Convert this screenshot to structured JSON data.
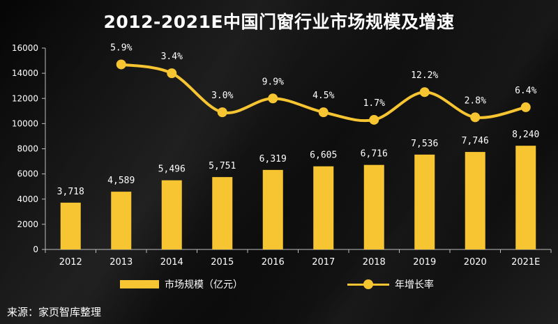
{
  "title": "2012-2021E中国门窗行业市场规模及增速",
  "source": "来源：家页智库整理",
  "colors": {
    "accent": "#F7C531",
    "background": "#000000",
    "text": "#FFFFFF"
  },
  "chart_data": {
    "type": "bar",
    "categories": [
      "2012",
      "2013",
      "2014",
      "2015",
      "2016",
      "2017",
      "2018",
      "2019",
      "2020",
      "2021E"
    ],
    "series": [
      {
        "name": "市场规模（亿元）",
        "type": "bar",
        "values": [
          3718,
          4589,
          5496,
          5751,
          6319,
          6605,
          6716,
          7536,
          7746,
          8240
        ],
        "labels": [
          "3,718",
          "4,589",
          "5,496",
          "5,751",
          "6,319",
          "6,605",
          "6,716",
          "7,536",
          "7,746",
          "8,240"
        ]
      },
      {
        "name": "年增长率",
        "type": "line",
        "values": [
          null,
          5.9,
          3.4,
          3.0,
          9.9,
          4.5,
          1.7,
          12.2,
          2.8,
          6.4
        ],
        "labels": [
          "",
          "5.9%",
          "3.4%",
          "3.0%",
          "9.9%",
          "4.5%",
          "1.7%",
          "12.2%",
          "2.8%",
          "6.4%"
        ],
        "display_y": [
          null,
          14700,
          14000,
          10900,
          12000,
          10900,
          10300,
          12500,
          10500,
          11300
        ]
      }
    ],
    "ylim": [
      0,
      16000
    ],
    "yticks": [
      0,
      2000,
      4000,
      6000,
      8000,
      10000,
      12000,
      14000,
      16000
    ],
    "legend_position": "bottom"
  }
}
